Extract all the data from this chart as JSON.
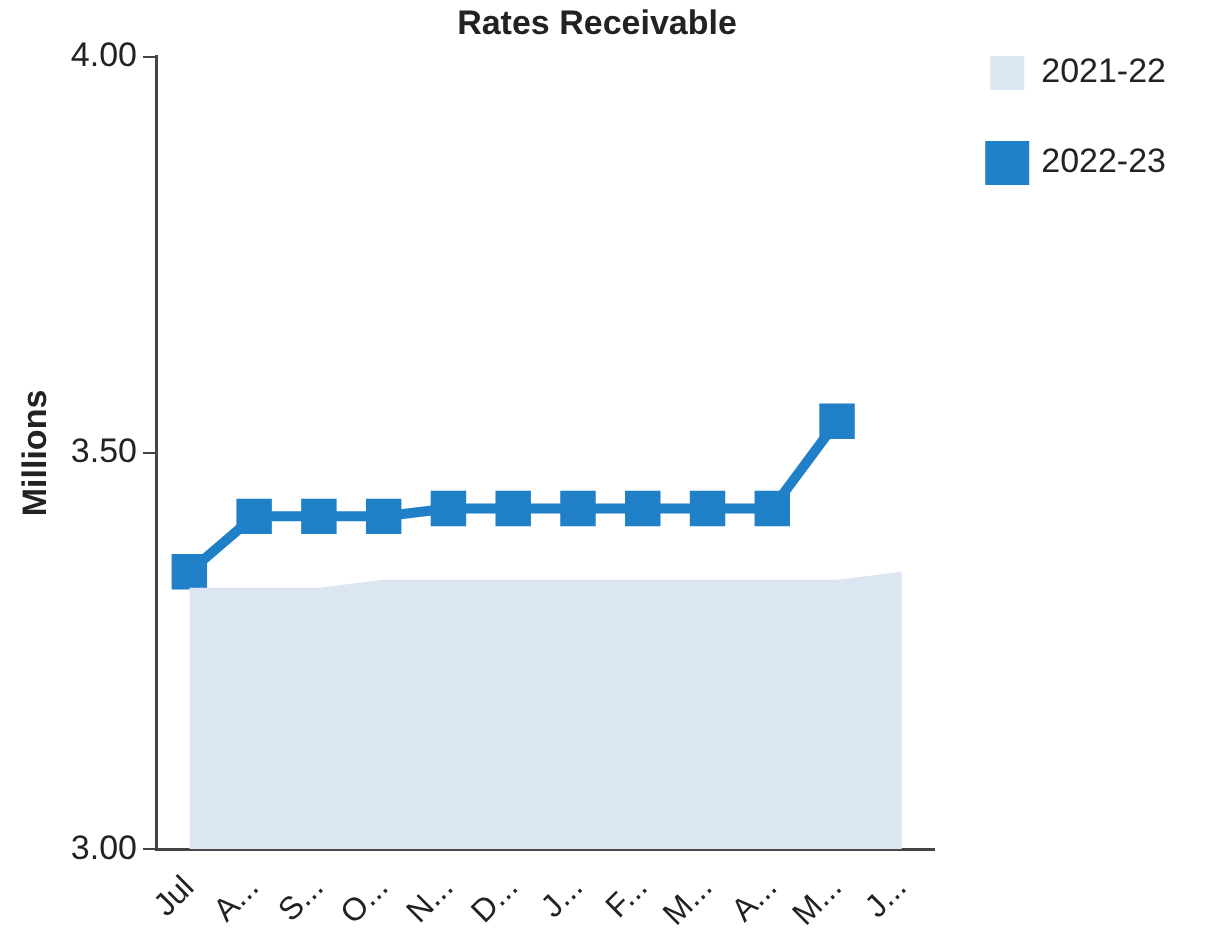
{
  "chart_data": {
    "type": "line",
    "title": "Rates Receivable",
    "ylabel": "Millions",
    "categories": [
      "Jul",
      "A...",
      "S...",
      "O...",
      "N...",
      "D...",
      "J...",
      "F...",
      "M...",
      "A...",
      "M...",
      "J..."
    ],
    "series": [
      {
        "name": "2021-22",
        "type": "area",
        "color": "#dce5f2",
        "values": [
          3.33,
          3.33,
          3.33,
          3.34,
          3.34,
          3.34,
          3.34,
          3.34,
          3.34,
          3.34,
          3.34,
          3.35
        ]
      },
      {
        "name": "2022-23",
        "type": "line",
        "color": "#1f7fc7",
        "marker": "square",
        "values": [
          3.35,
          3.42,
          3.42,
          3.42,
          3.43,
          3.43,
          3.43,
          3.43,
          3.43,
          3.43,
          3.54,
          null
        ]
      }
    ],
    "ylim": [
      3.0,
      4.0
    ],
    "yticks": [
      {
        "value": 3.0,
        "label": "3.00"
      },
      {
        "value": 3.5,
        "label": "3.50"
      },
      {
        "value": 4.0,
        "label": "4.00"
      }
    ],
    "grid": false,
    "legend": "top right"
  }
}
